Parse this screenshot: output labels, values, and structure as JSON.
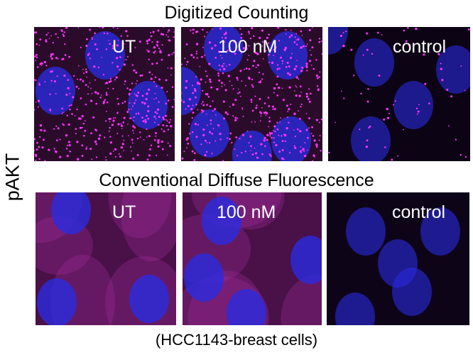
{
  "figure": {
    "y_label": "pAKT",
    "caption": "(HCC1143-breast cells)",
    "rows": [
      {
        "title": "Digitized Counting",
        "style": "punctate",
        "panels": [
          {
            "label": "UT",
            "signal": "high"
          },
          {
            "label": "100 nM",
            "signal": "high"
          },
          {
            "label": "control",
            "signal": "low"
          }
        ]
      },
      {
        "title": "Conventional Diffuse Fluorescence",
        "style": "diffuse",
        "panels": [
          {
            "label": "UT",
            "signal": "high"
          },
          {
            "label": "100 nM",
            "signal": "high"
          },
          {
            "label": "control",
            "signal": "low"
          }
        ]
      }
    ],
    "colors": {
      "nucleus": "#2a2ae0",
      "signal": "#ff33ff",
      "background": "#1a0518"
    }
  }
}
